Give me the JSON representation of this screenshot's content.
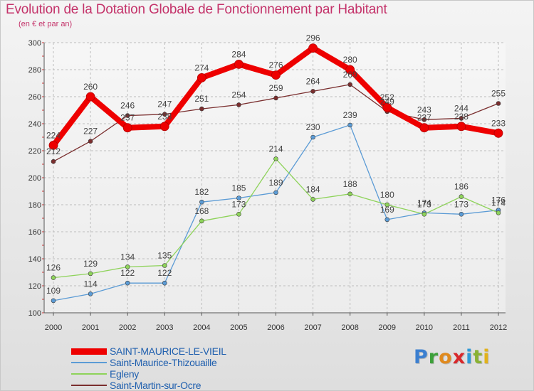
{
  "chart_data": {
    "type": "line",
    "title": "Evolution de la Dotation Globale de Fonctionnement par Habitant",
    "subtitle": "(en € et par an)",
    "xlabel": "",
    "ylabel": "",
    "x": [
      "2000",
      "2001",
      "2002",
      "2003",
      "2004",
      "2005",
      "2006",
      "2007",
      "2008",
      "2009",
      "2010",
      "2011",
      "2012"
    ],
    "ylim": [
      100,
      300
    ],
    "yticks": [
      "100",
      "120",
      "140",
      "160",
      "180",
      "200",
      "220",
      "240",
      "260",
      "280",
      "300"
    ],
    "grid": true,
    "legend_position": "bottom-left",
    "series": [
      {
        "name": "SAINT-MAURICE-LE-VIEIL",
        "color": "#ee0000",
        "values": [
          224,
          260,
          237,
          238,
          274,
          284,
          276,
          296,
          280,
          252,
          237,
          238,
          233
        ]
      },
      {
        "name": "Saint-Maurice-Thizouaille",
        "color": "#5b9bd5",
        "values": [
          109,
          114,
          122,
          122,
          182,
          185,
          189,
          230,
          239,
          169,
          174,
          173,
          176
        ]
      },
      {
        "name": "Egleny",
        "color": "#8ed35a",
        "values": [
          126,
          129,
          134,
          135,
          168,
          173,
          214,
          184,
          188,
          180,
          173,
          186,
          174
        ]
      },
      {
        "name": "Saint-Martin-sur-Ocre",
        "color": "#7a2e2e",
        "values": [
          212,
          227,
          246,
          247,
          251,
          254,
          259,
          264,
          269,
          249,
          243,
          244,
          255
        ]
      }
    ]
  },
  "logo": {
    "p": "P",
    "r": "r",
    "o": "o",
    "x": "x",
    "i1": "i",
    "t": "t",
    "i2": "i"
  }
}
